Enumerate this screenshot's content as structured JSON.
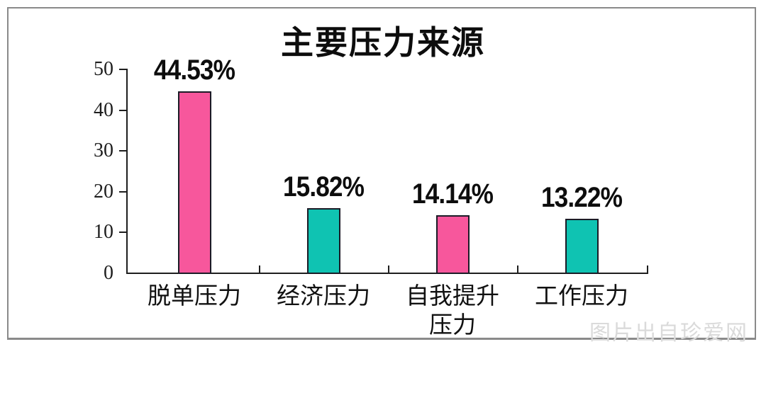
{
  "page": {
    "background": "#ffffff",
    "frame_border_color": "#8a8a8a",
    "watermark": "图片出自珍爱网",
    "watermark_color": "#dadada"
  },
  "chart_data": {
    "type": "bar",
    "title": "主要压力来源",
    "categories": [
      "脱单压力",
      "经济压力",
      "自我提升压力",
      "工作压力"
    ],
    "category_display": [
      [
        "脱单压力"
      ],
      [
        "经济压力"
      ],
      [
        "自我提升",
        "压力"
      ],
      [
        "工作压力"
      ]
    ],
    "values": [
      44.53,
      15.82,
      14.14,
      13.22
    ],
    "value_labels": [
      "44.53%",
      "15.82%",
      "14.14%",
      "13.22%"
    ],
    "bar_colors": [
      "#f7579c",
      "#0fc3b2",
      "#f7579c",
      "#0fc3b2"
    ],
    "bar_border_color": "#1b1b26",
    "axis_color": "#1e1e1e",
    "yticks": [
      0,
      10,
      20,
      30,
      40,
      50
    ],
    "ylim": [
      0,
      50
    ],
    "xlabel": "",
    "ylabel": "",
    "grid": false,
    "legend": null
  }
}
